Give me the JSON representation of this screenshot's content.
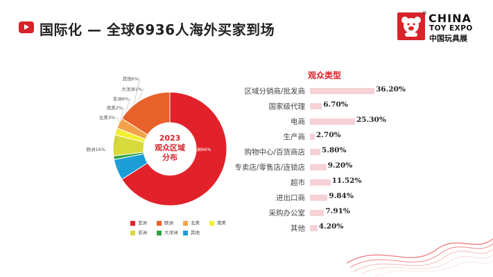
{
  "header": {
    "title": "国际化 — 全球6936人海外买家到场",
    "logo": {
      "line1": "CHINA",
      "line2": "TOY EXPO",
      "line3": "中国玩具展",
      "reg": "®"
    }
  },
  "chart_data": [
    {
      "type": "pie",
      "title": "",
      "center_label": [
        "2023",
        "观众区域",
        "分布"
      ],
      "series": [
        {
          "label": "亚洲",
          "value": 66,
          "text": "亚洲66%",
          "color": "#e2222b"
        },
        {
          "label": "其他",
          "value": 6,
          "text": "其他6%",
          "color": "#1b9ed8"
        },
        {
          "label": "大洋洲",
          "value": 1,
          "text": "大洋洲1%",
          "color": "#2ca23f"
        },
        {
          "label": "非洲",
          "value": 6,
          "text": "非洲6%",
          "color": "#d7da3a"
        },
        {
          "label": "南美",
          "value": 2,
          "text": "南美2%",
          "color": "#f3ef2f"
        },
        {
          "label": "北美",
          "value": 3,
          "text": "北美3%",
          "color": "#f4a24a"
        },
        {
          "label": "欧洲",
          "value": 16,
          "text": "欧洲16%",
          "color": "#e8612a"
        }
      ],
      "legend": {
        "placement": "bottom",
        "items": [
          {
            "label": "亚洲",
            "color": "#e2222b"
          },
          {
            "label": "欧洲",
            "color": "#e8612a"
          },
          {
            "label": "北美",
            "color": "#f4a24a"
          },
          {
            "label": "南美",
            "color": "#f3ef2f"
          },
          {
            "label": "非洲",
            "color": "#d7da3a"
          },
          {
            "label": "大洋洲",
            "color": "#2ca23f"
          },
          {
            "label": "其他",
            "color": "#1b9ed8"
          }
        ]
      }
    },
    {
      "type": "bar",
      "orientation": "horizontal",
      "title": "观众类型",
      "xlim": [
        0,
        36.2
      ],
      "categories": [
        "区域分销商/批发商",
        "国家级代理",
        "电商",
        "生产商",
        "购物中心/百货商店",
        "专卖店/零售店/连锁店",
        "超市",
        "进出口商",
        "采购办公室",
        "其他"
      ],
      "values": [
        36.2,
        6.7,
        25.3,
        2.7,
        5.8,
        9.2,
        11.52,
        9.84,
        7.91,
        4.2
      ],
      "value_labels": [
        "36.20%",
        "6.70%",
        "25.30%",
        "2.70%",
        "5.80%",
        "9.20%",
        "11.52%",
        "9.84%",
        "7.91%",
        "4.20%"
      ],
      "bar_color": "#f6d1d5"
    }
  ]
}
